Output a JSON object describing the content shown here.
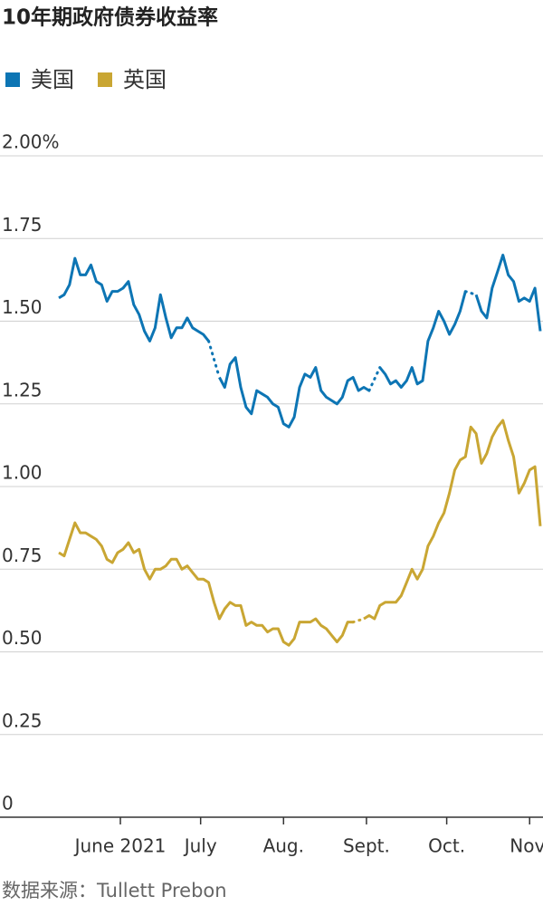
{
  "chart_data": {
    "type": "line",
    "title": "10年期政府债券收益率",
    "source": "数据来源：Tullett Prebon",
    "x": [
      22,
      24,
      26,
      28,
      30,
      32,
      34,
      36,
      38,
      40,
      42,
      44,
      46,
      48,
      50,
      52,
      54,
      56,
      58,
      60,
      62,
      64,
      66,
      68,
      70,
      72,
      74,
      76,
      78,
      80,
      82,
      84,
      86,
      88,
      90,
      92,
      94,
      96,
      98,
      100,
      102,
      104,
      106,
      108,
      110,
      112,
      114,
      116,
      118,
      120,
      122,
      124,
      126,
      128,
      130,
      132,
      134,
      136,
      138,
      140,
      142,
      144,
      146,
      148,
      150,
      152,
      154,
      156,
      158,
      160,
      162,
      164,
      166,
      168,
      170,
      172,
      174,
      176,
      178,
      180,
      182,
      184,
      186,
      188,
      190,
      192,
      194,
      196,
      198,
      200,
      202
    ],
    "series": [
      {
        "name": "美国",
        "color": "#0d75b4",
        "values": [
          1.57,
          1.58,
          1.61,
          1.69,
          1.64,
          1.64,
          1.67,
          1.62,
          1.61,
          1.56,
          1.59,
          1.59,
          1.6,
          1.62,
          1.55,
          1.52,
          1.47,
          1.44,
          1.48,
          1.58,
          1.51,
          1.45,
          1.48,
          1.48,
          1.51,
          1.48,
          1.47,
          1.46,
          1.44,
          null,
          1.33,
          1.3,
          1.37,
          1.39,
          1.3,
          1.24,
          1.22,
          1.29,
          1.28,
          1.27,
          1.25,
          1.24,
          1.19,
          1.18,
          1.21,
          1.3,
          1.34,
          1.33,
          1.36,
          1.29,
          1.27,
          1.26,
          1.25,
          1.27,
          1.32,
          1.33,
          1.29,
          1.3,
          1.29,
          null,
          1.36,
          1.34,
          1.31,
          1.32,
          1.3,
          1.32,
          1.36,
          1.31,
          1.32,
          1.44,
          1.48,
          1.53,
          1.5,
          1.46,
          1.49,
          1.53,
          1.59,
          null,
          1.58,
          1.53,
          1.51,
          1.6,
          1.65,
          1.7,
          1.64,
          1.62,
          1.56,
          1.57,
          1.56,
          1.6,
          1.47
        ]
      },
      {
        "name": "英国",
        "color": "#c9a633",
        "values": [
          0.8,
          0.79,
          0.84,
          0.89,
          0.86,
          0.86,
          0.85,
          0.84,
          0.82,
          0.78,
          0.77,
          0.8,
          0.81,
          0.83,
          0.8,
          0.81,
          0.75,
          0.72,
          0.75,
          0.75,
          0.76,
          0.78,
          0.78,
          0.75,
          0.76,
          0.74,
          0.72,
          0.72,
          0.71,
          0.65,
          0.6,
          0.63,
          0.65,
          0.64,
          0.64,
          0.58,
          0.59,
          0.58,
          0.58,
          0.56,
          0.57,
          0.57,
          0.53,
          0.52,
          0.54,
          0.59,
          0.59,
          0.59,
          0.6,
          0.58,
          0.57,
          0.55,
          0.53,
          0.55,
          0.59,
          0.59,
          null,
          0.6,
          0.61,
          0.6,
          0.64,
          0.65,
          0.65,
          0.65,
          0.67,
          0.71,
          0.75,
          0.72,
          0.75,
          0.82,
          0.85,
          0.89,
          0.92,
          0.98,
          1.05,
          1.08,
          1.09,
          1.18,
          1.16,
          1.07,
          1.1,
          1.15,
          1.18,
          1.2,
          1.14,
          1.09,
          0.98,
          1.01,
          1.05,
          1.06,
          0.88
        ]
      }
    ],
    "xlim": [
      0,
      203
    ],
    "xticks": [
      {
        "value": 45,
        "label": "June 2021"
      },
      {
        "value": 75,
        "label": "July"
      },
      {
        "value": 106,
        "label": "Aug."
      },
      {
        "value": 137,
        "label": "Sept."
      },
      {
        "value": 167,
        "label": "Oct."
      },
      {
        "value": 198,
        "label": "Nov."
      }
    ],
    "ylim": [
      0,
      2
    ],
    "yticks": [
      0,
      0.25,
      {
        "value": 0.5,
        "label": "0.50"
      },
      0.75,
      {
        "value": 1,
        "label": "1.00"
      },
      1.25,
      {
        "value": 1.5,
        "label": "1.50"
      },
      1.75,
      {
        "value": 2,
        "label": "2.00%"
      }
    ],
    "grid": true
  }
}
